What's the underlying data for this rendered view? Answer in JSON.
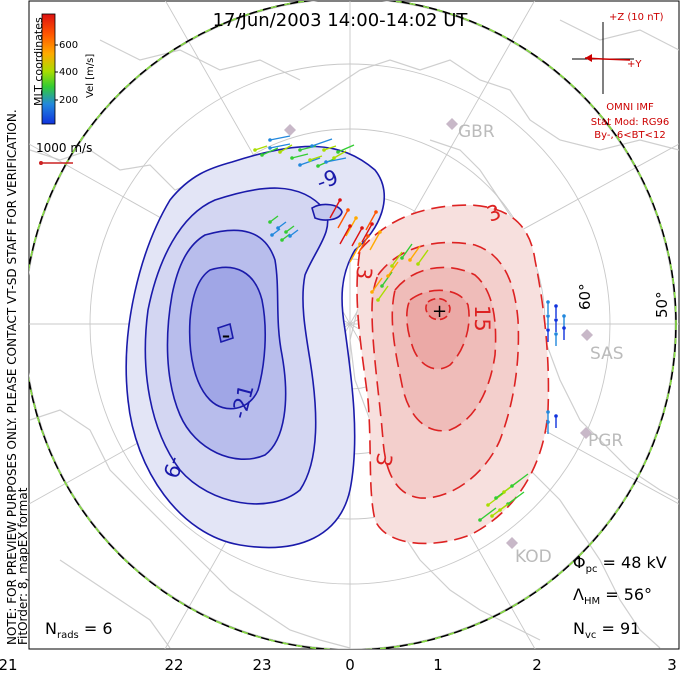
{
  "title": "17/Jun/2003 14:00-14:02 UT",
  "side_notes": {
    "line1": "NOTE: FOR PREVIEW PURPOSES ONLY. PLEASE CONTACT VT-SD STAFF FOR VERIFICATION.",
    "line2": "FitOrder: 8, mapEX format"
  },
  "coords_label": "MLT coordinates",
  "colorbar": {
    "title": "Vel [m/s]",
    "ticks": [
      "600",
      "400",
      "200"
    ],
    "colors": [
      "#dd1111",
      "#ff5500",
      "#ffaa00",
      "#aadd00",
      "#33cc33",
      "#2288dd",
      "#1133dd"
    ]
  },
  "ref_vector": {
    "label": "1000 m/s",
    "color": "#cc2222"
  },
  "imf": {
    "z_label": "+Z (10 nT)",
    "y_label": "+Y",
    "omni": "OMNI IMF",
    "model": "Stat Mod: RG96",
    "condition": "By-, 6<BT<12",
    "color": "#cc0000"
  },
  "stations": [
    "GBR",
    "SAS",
    "PGR",
    "KOD"
  ],
  "latitude_labels": [
    "60°",
    "50°"
  ],
  "contours": {
    "negative_labels": [
      "-9",
      "-21",
      "-9"
    ],
    "positive_labels": [
      "3",
      "15",
      "3",
      "3"
    ],
    "negative_color": "#1a1aaa",
    "positive_color": "#dd2222"
  },
  "stats": {
    "phi_pc": "48 kV",
    "lambda_hm": "56°",
    "n_vc": "91",
    "n_rads": "6"
  },
  "stats_symbols": {
    "phi": "Φ",
    "phi_sub": "pc",
    "lambda": "Λ",
    "lambda_sub": "HM",
    "nvc": "N",
    "nvc_sub": "vc",
    "nrads": "N",
    "nrads_sub": "rads"
  },
  "mlt_ticks": [
    "21",
    "22",
    "23",
    "0",
    "1",
    "2",
    "3"
  ]
}
